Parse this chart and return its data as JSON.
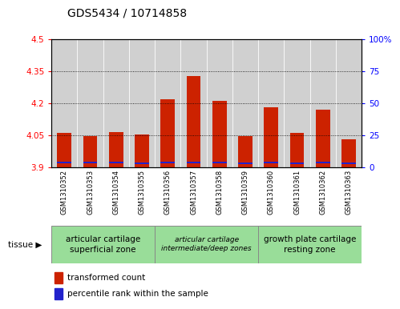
{
  "title": "GDS5434 / 10714858",
  "samples": [
    "GSM1310352",
    "GSM1310353",
    "GSM1310354",
    "GSM1310355",
    "GSM1310356",
    "GSM1310357",
    "GSM1310358",
    "GSM1310359",
    "GSM1310360",
    "GSM1310361",
    "GSM1310362",
    "GSM1310363"
  ],
  "red_values": [
    4.06,
    4.045,
    4.065,
    4.055,
    4.22,
    4.33,
    4.21,
    4.045,
    4.18,
    4.06,
    4.17,
    4.03
  ],
  "blue_heights": [
    0.008,
    0.008,
    0.008,
    0.008,
    0.008,
    0.008,
    0.008,
    0.008,
    0.008,
    0.008,
    0.008,
    0.008
  ],
  "blue_bottoms": [
    3.918,
    3.918,
    3.918,
    3.916,
    3.92,
    3.92,
    3.92,
    3.916,
    3.918,
    3.916,
    3.918,
    3.916
  ],
  "y_min": 3.9,
  "y_max": 4.5,
  "y_ticks": [
    3.9,
    4.05,
    4.2,
    4.35,
    4.5
  ],
  "y_tick_labels": [
    "3.9",
    "4.05",
    "4.2",
    "4.35",
    "4.5"
  ],
  "right_tick_vals": [
    3.9,
    4.05,
    4.2,
    4.35,
    4.5
  ],
  "right_tick_labels": [
    "0",
    "25",
    "50",
    "75",
    "100%"
  ],
  "tissue_groups": [
    {
      "label": "articular cartilage\nsuperficial zone",
      "start": 0,
      "end": 3,
      "italic": false
    },
    {
      "label": "articular cartilage\nintermediate/deep zones",
      "start": 4,
      "end": 7,
      "italic": true
    },
    {
      "label": "growth plate cartilage\nresting zone",
      "start": 8,
      "end": 11,
      "italic": false
    }
  ],
  "tissue_label": "tissue",
  "legend_red": "transformed count",
  "legend_blue": "percentile rank within the sample",
  "bar_width": 0.55,
  "red_color": "#cc2200",
  "blue_color": "#2222cc",
  "title_fontsize": 10,
  "tick_fontsize": 7.5,
  "sample_fontsize": 6,
  "tissue_fontsize": 7.5,
  "tissue_italic_fontsize": 6.5,
  "legend_fontsize": 7.5
}
